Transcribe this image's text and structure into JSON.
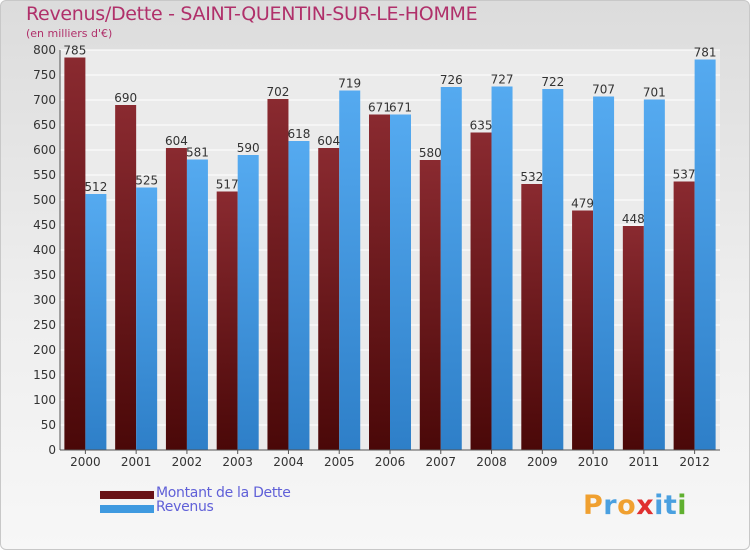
{
  "chart_data": {
    "type": "bar",
    "title": "Revenus/Dette - SAINT-QUENTIN-SUR-LE-HOMME",
    "subtitle": "(en milliers d'€)",
    "xlabel": "",
    "ylabel": "",
    "ylim": [
      0,
      800
    ],
    "ytick_step": 50,
    "grid": true,
    "categories": [
      "2000",
      "2001",
      "2002",
      "2003",
      "2004",
      "2005",
      "2006",
      "2007",
      "2008",
      "2009",
      "2010",
      "2011",
      "2012"
    ],
    "series": [
      {
        "name": "Montant de la Dette",
        "color": "#7a1f24",
        "values": [
          785,
          690,
          604,
          517,
          702,
          604,
          671,
          580,
          635,
          532,
          479,
          448,
          537
        ]
      },
      {
        "name": "Revenus",
        "color": "#3f9ae0",
        "values": [
          512,
          525,
          581,
          590,
          618,
          719,
          671,
          726,
          727,
          722,
          707,
          701,
          781
        ]
      }
    ],
    "legend_position": "bottom-left"
  },
  "logo": {
    "text": "Proxiti",
    "letters": [
      "P",
      "r",
      "o",
      "x",
      "i",
      "t",
      "i"
    ],
    "colors": [
      "#f0a030",
      "#4aa0e0",
      "#f0a030",
      "#e03030",
      "#4aa0e0",
      "#4aa0e0",
      "#60b030"
    ]
  }
}
